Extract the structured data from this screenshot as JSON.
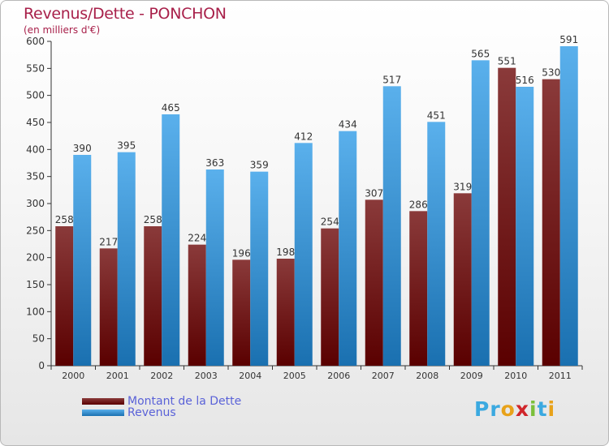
{
  "title": "Revenus/Dette - PONCHON",
  "subtitle": "(en milliers d'€)",
  "logo": {
    "letters": [
      "P",
      "r",
      "o",
      "x",
      "i",
      "t",
      "i"
    ],
    "colors": [
      "#3ba9e0",
      "#3ba9e0",
      "#e8a21a",
      "#d0262b",
      "#7bbf3a",
      "#3ba9e0",
      "#e8a21a"
    ]
  },
  "colors": {
    "dette": "#5a0000",
    "dette_light": "#8a3a3a",
    "revenus": "#1a70b0",
    "revenus_light": "#5ab0ec",
    "accent": "#a8204a",
    "legend_text": "#5a62d8"
  },
  "chart_data": {
    "type": "bar",
    "title": "Revenus/Dette - PONCHON",
    "subtitle": "(en milliers d'€)",
    "categories": [
      "2000",
      "2001",
      "2002",
      "2003",
      "2004",
      "2005",
      "2006",
      "2007",
      "2008",
      "2009",
      "2010",
      "2011"
    ],
    "series": [
      {
        "name": "Montant de la Dette",
        "values": [
          258,
          217,
          258,
          224,
          196,
          198,
          254,
          307,
          286,
          319,
          551,
          530
        ]
      },
      {
        "name": "Revenus",
        "values": [
          390,
          395,
          465,
          363,
          359,
          412,
          434,
          517,
          451,
          565,
          516,
          591
        ]
      }
    ],
    "ylim": [
      0,
      600
    ],
    "yticks": [
      0,
      50,
      100,
      150,
      200,
      250,
      300,
      350,
      400,
      450,
      500,
      550,
      600
    ],
    "grid": false,
    "legend_position": "bottom-left"
  }
}
